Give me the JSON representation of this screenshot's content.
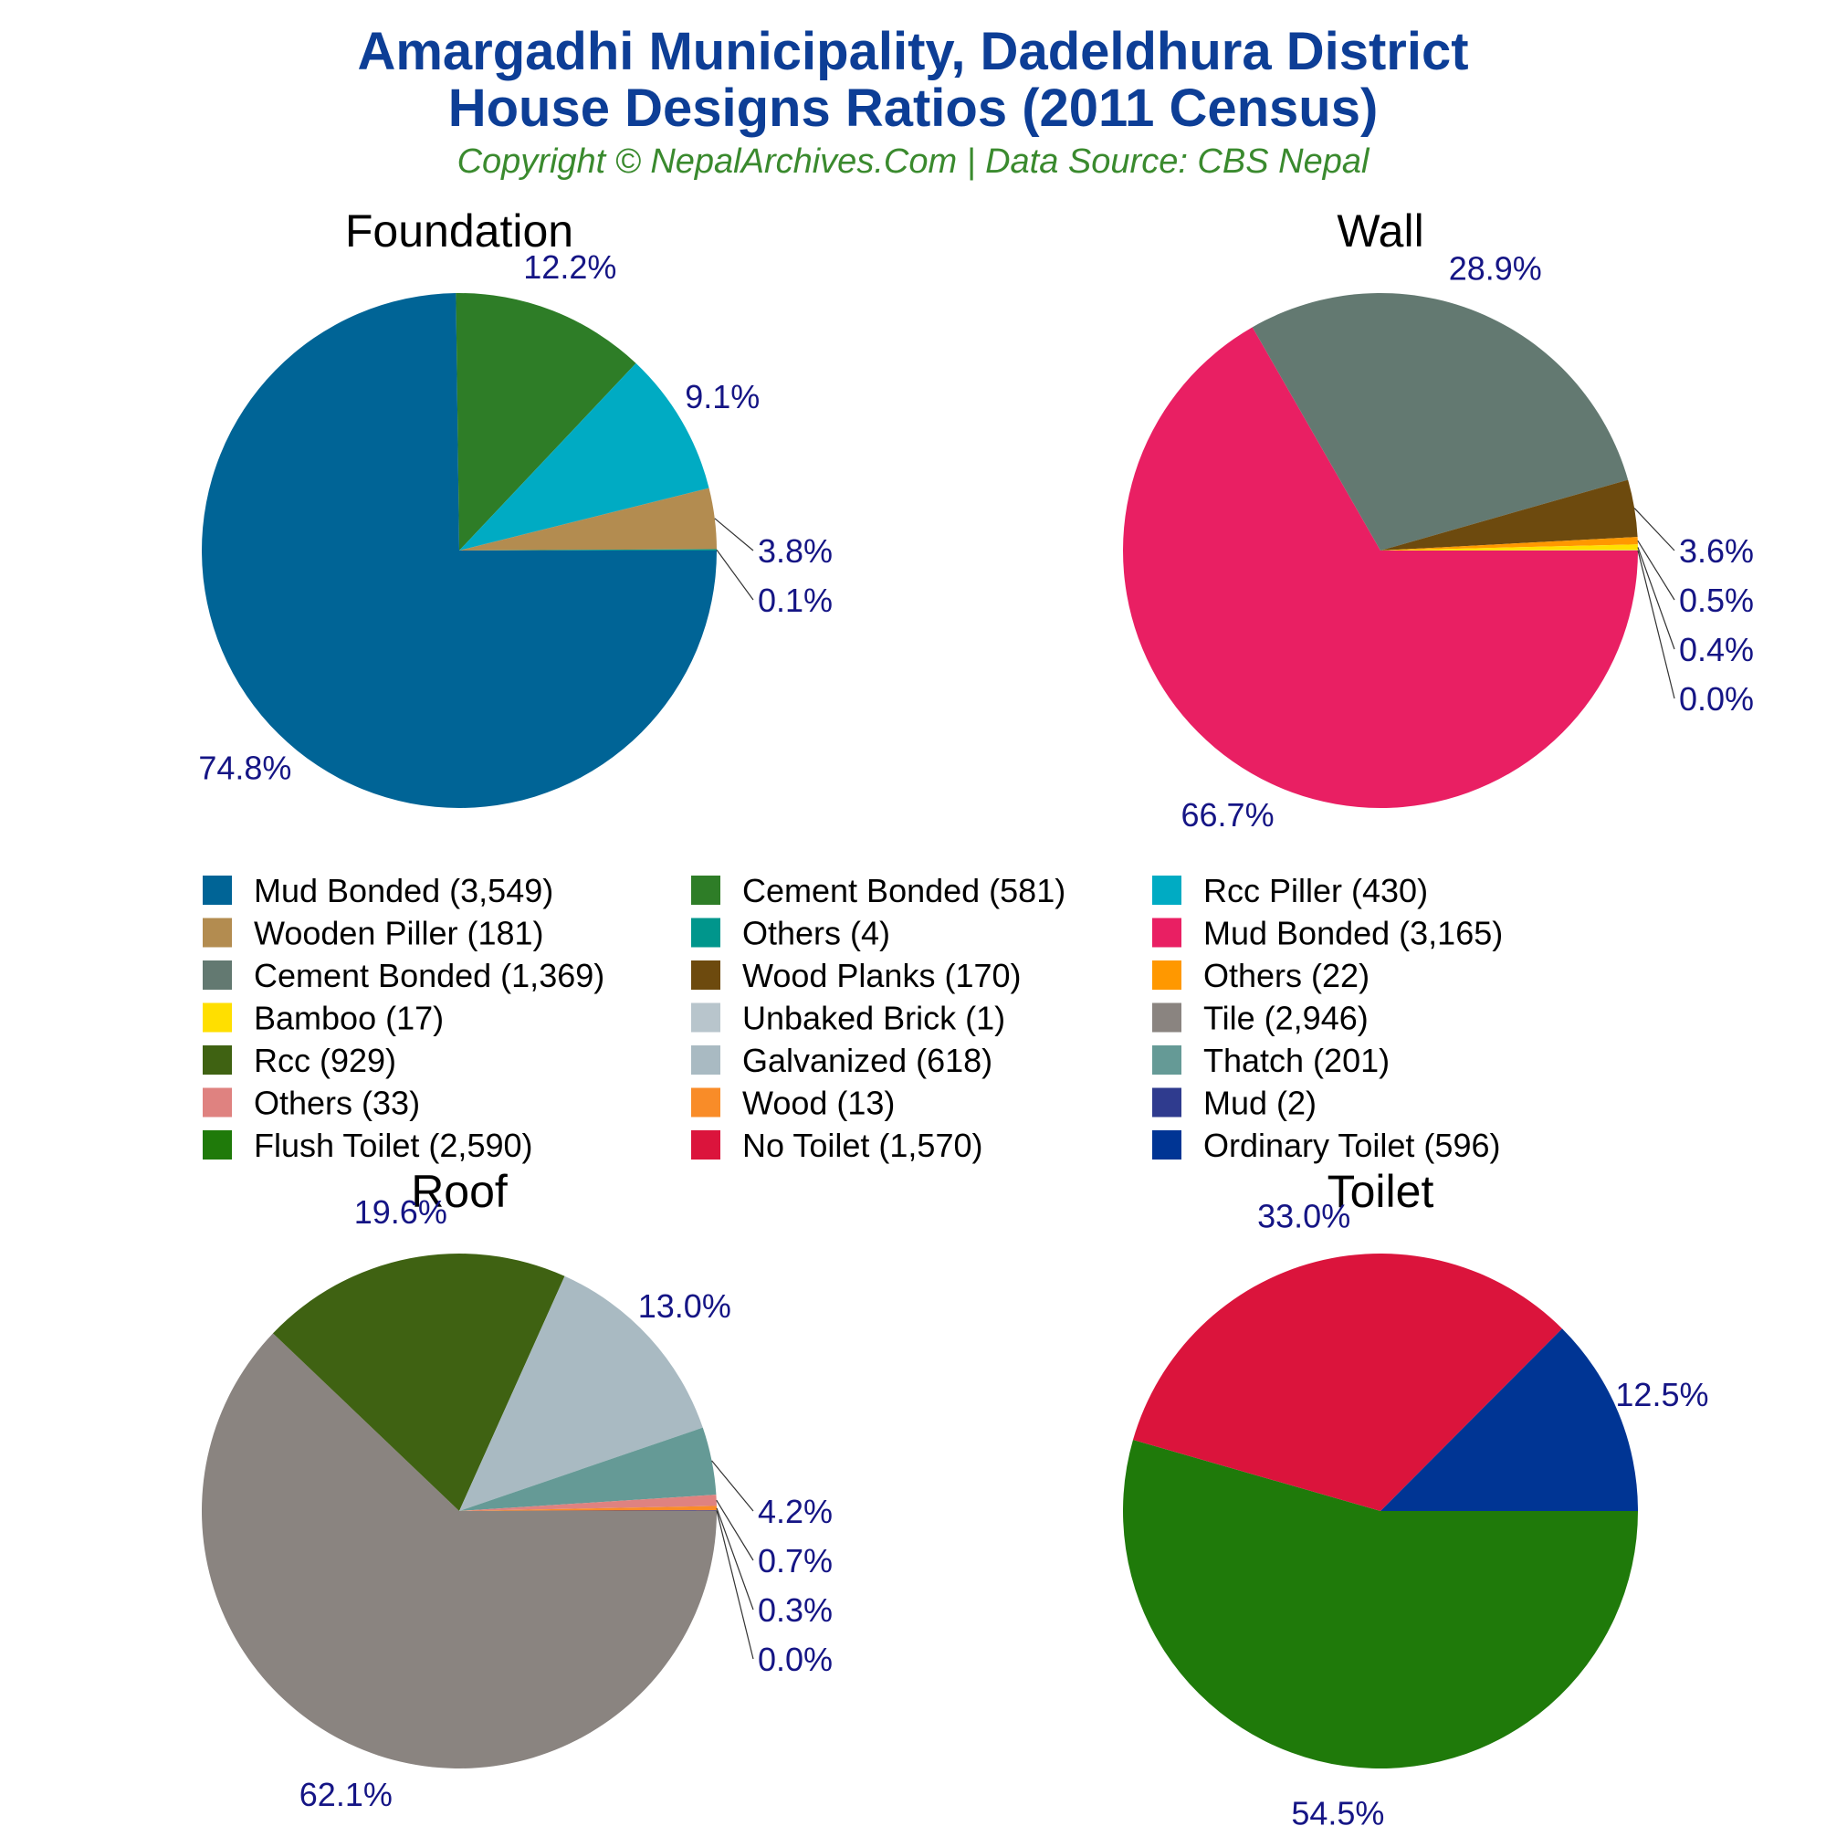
{
  "title_line1": "Amargadhi Municipality, Dadeldhura District",
  "title_line2": "House Designs Ratios (2011 Census)",
  "subtitle": "Copyright © NepalArchives.Com | Data Source: CBS Nepal",
  "chart_data": [
    {
      "type": "pie",
      "title": "Foundation",
      "slices": [
        {
          "label": "Mud Bonded",
          "value": 3549,
          "pct_label": "74.8%",
          "color": "#006496"
        },
        {
          "label": "Cement Bonded",
          "value": 581,
          "pct_label": "12.2%",
          "color": "#2e7d27"
        },
        {
          "label": "Rcc Piller",
          "value": 430,
          "pct_label": "9.1%",
          "color": "#00abc3"
        },
        {
          "label": "Wooden Piller",
          "value": 181,
          "pct_label": "3.8%",
          "color": "#b38c50"
        },
        {
          "label": "Others",
          "value": 4,
          "pct_label": "0.1%",
          "color": "#00968c"
        }
      ]
    },
    {
      "type": "pie",
      "title": "Wall",
      "slices": [
        {
          "label": "Mud Bonded",
          "value": 3165,
          "pct_label": "66.7%",
          "color": "#e91f63"
        },
        {
          "label": "Cement Bonded",
          "value": 1369,
          "pct_label": "28.9%",
          "color": "#637971"
        },
        {
          "label": "Wood Planks",
          "value": 170,
          "pct_label": "3.6%",
          "color": "#6d4a0e"
        },
        {
          "label": "Others",
          "value": 22,
          "pct_label": "0.5%",
          "color": "#ff9800"
        },
        {
          "label": "Bamboo",
          "value": 17,
          "pct_label": "0.4%",
          "color": "#ffdf00"
        },
        {
          "label": "Unbaked Brick",
          "value": 1,
          "pct_label": "0.0%",
          "color": "#b8c5cc"
        }
      ]
    },
    {
      "type": "pie",
      "title": "Roof",
      "slices": [
        {
          "label": "Tile",
          "value": 2946,
          "pct_label": "62.1%",
          "color": "#8a8480"
        },
        {
          "label": "Rcc",
          "value": 929,
          "pct_label": "19.6%",
          "color": "#3f6212"
        },
        {
          "label": "Galvanized",
          "value": 618,
          "pct_label": "13.0%",
          "color": "#a9bac2"
        },
        {
          "label": "Thatch",
          "value": 201,
          "pct_label": "4.2%",
          "color": "#659a96"
        },
        {
          "label": "Others",
          "value": 33,
          "pct_label": "0.7%",
          "color": "#df8280"
        },
        {
          "label": "Wood",
          "value": 13,
          "pct_label": "0.3%",
          "color": "#f98c28"
        },
        {
          "label": "Mud",
          "value": 2,
          "pct_label": "0.0%",
          "color": "#2f3b8e"
        }
      ]
    },
    {
      "type": "pie",
      "title": "Toilet",
      "slices": [
        {
          "label": "Flush Toilet",
          "value": 2590,
          "pct_label": "54.5%",
          "color": "#1f7a0a"
        },
        {
          "label": "No Toilet",
          "value": 1570,
          "pct_label": "33.0%",
          "color": "#db143c"
        },
        {
          "label": "Ordinary Toilet",
          "value": 596,
          "pct_label": "12.5%",
          "color": "#003594"
        }
      ]
    }
  ],
  "legend": [
    {
      "label": "Mud Bonded (3,549)",
      "color": "#006496"
    },
    {
      "label": "Cement Bonded (581)",
      "color": "#2e7d27"
    },
    {
      "label": "Rcc Piller (430)",
      "color": "#00abc3"
    },
    {
      "label": "Wooden Piller (181)",
      "color": "#b38c50"
    },
    {
      "label": "Others (4)",
      "color": "#00968c"
    },
    {
      "label": "Mud Bonded (3,165)",
      "color": "#e91f63"
    },
    {
      "label": "Cement Bonded (1,369)",
      "color": "#637971"
    },
    {
      "label": "Wood Planks (170)",
      "color": "#6d4a0e"
    },
    {
      "label": "Others (22)",
      "color": "#ff9800"
    },
    {
      "label": "Bamboo (17)",
      "color": "#ffdf00"
    },
    {
      "label": "Unbaked Brick (1)",
      "color": "#b8c5cc"
    },
    {
      "label": "Tile (2,946)",
      "color": "#8a8480"
    },
    {
      "label": "Rcc (929)",
      "color": "#3f6212"
    },
    {
      "label": "Galvanized (618)",
      "color": "#a9bac2"
    },
    {
      "label": "Thatch (201)",
      "color": "#659a96"
    },
    {
      "label": "Others (33)",
      "color": "#df8280"
    },
    {
      "label": "Wood (13)",
      "color": "#f98c28"
    },
    {
      "label": "Mud (2)",
      "color": "#2f3b8e"
    },
    {
      "label": "Flush Toilet (2,590)",
      "color": "#1f7a0a"
    },
    {
      "label": "No Toilet (1,570)",
      "color": "#db143c"
    },
    {
      "label": "Ordinary Toilet (596)",
      "color": "#003594"
    }
  ],
  "label_color": "#151585"
}
